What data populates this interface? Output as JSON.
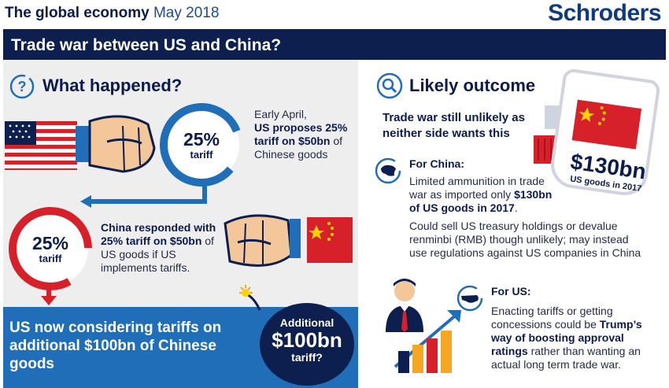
{
  "header": {
    "title_bold": "The global economy",
    "title_date": "May 2018",
    "logo": "Schroders"
  },
  "banner": "Trade war between US and China?",
  "left": {
    "heading": "What happened?",
    "ring1": {
      "pct": "25%",
      "label": "tariff"
    },
    "event1": {
      "line1": "Early April,",
      "bold": "US proposes 25% tariff on $50bn",
      "rest": " of Chinese goods"
    },
    "ring2": {
      "pct": "25%",
      "label": "tariff"
    },
    "event2": {
      "bold1": "China responded with 25% tariff on $50bn",
      "rest": " of US goods if US implements tariffs."
    },
    "bottom_text": "US now considering tariffs on additional $100bn of Chinese goods",
    "bomb": {
      "line1": "Additional",
      "amount": "$100bn",
      "line2": "tariff?"
    }
  },
  "right": {
    "heading": "Likely outcome",
    "summary": "Trade war still unlikely as neither side wants this",
    "price_tag": {
      "amount": "$130bn",
      "caption": "US goods in 2017"
    },
    "china": {
      "label": "For China:",
      "p1_pre": "Limited ammunition in trade war as imported only ",
      "p1_bold": "$130bn of US goods in 2017",
      "p1_post": ".",
      "p2": "Could sell US treasury holdings or devalue renminbi (RMB) though unlikely; may instead use regulations against US companies in China"
    },
    "us": {
      "label": "For US:",
      "p_pre": "Enacting tariffs or getting concessions could be ",
      "p_bold": "Trump’s way of boosting approval ratings",
      "p_post": " rather than wanting an actual long term trade war."
    }
  },
  "colors": {
    "navy": "#0c1f4f",
    "blue": "#1f6eb7",
    "red": "#d6202a",
    "panel": "#eeeeee"
  },
  "icons": [
    "question-icon",
    "search-icon",
    "china-map-icon",
    "us-map-icon",
    "us-flag-icon",
    "china-flag-icon",
    "fist-icon",
    "bomb-icon",
    "businessman-icon",
    "bar-chart-icon"
  ]
}
